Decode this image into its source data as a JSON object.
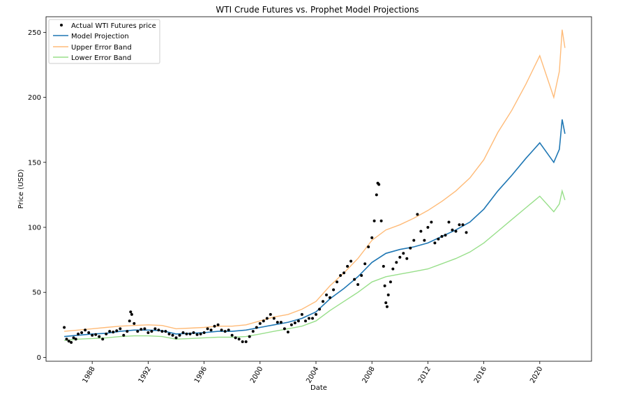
{
  "chart_data": {
    "type": "line",
    "title": "WTI Crude Futures vs. Prophet Model Projections",
    "xlabel": "Date",
    "ylabel": "Price (USD)",
    "xlim": [
      1984.7,
      2023.7
    ],
    "ylim": [
      -3,
      262
    ],
    "xticks": [
      1988,
      1992,
      1996,
      2000,
      2004,
      2008,
      2012,
      2016,
      2020
    ],
    "yticks": [
      0,
      50,
      100,
      150,
      200,
      250
    ],
    "grid": false,
    "legend_position": "upper left",
    "series": [
      {
        "name": "Actual WTI Futures price",
        "style": "markers",
        "color": "#000000",
        "points": [
          [
            1986.0,
            23
          ],
          [
            1986.17,
            14
          ],
          [
            1986.33,
            12.5
          ],
          [
            1986.5,
            11.5
          ],
          [
            1986.67,
            15
          ],
          [
            1986.83,
            14
          ],
          [
            1987.0,
            18
          ],
          [
            1987.25,
            19
          ],
          [
            1987.5,
            21
          ],
          [
            1987.75,
            19
          ],
          [
            1988.0,
            17
          ],
          [
            1988.25,
            17.5
          ],
          [
            1988.5,
            16
          ],
          [
            1988.75,
            14
          ],
          [
            1989.0,
            18
          ],
          [
            1989.25,
            20
          ],
          [
            1989.5,
            19.5
          ],
          [
            1989.75,
            20.5
          ],
          [
            1990.0,
            22
          ],
          [
            1990.25,
            17
          ],
          [
            1990.5,
            20
          ],
          [
            1990.67,
            28
          ],
          [
            1990.75,
            35
          ],
          [
            1990.83,
            33
          ],
          [
            1991.0,
            26
          ],
          [
            1991.25,
            20
          ],
          [
            1991.5,
            21.5
          ],
          [
            1991.75,
            22
          ],
          [
            1992.0,
            19
          ],
          [
            1992.25,
            20
          ],
          [
            1992.5,
            22
          ],
          [
            1992.75,
            21
          ],
          [
            1993.0,
            20
          ],
          [
            1993.25,
            20
          ],
          [
            1993.5,
            18
          ],
          [
            1993.75,
            17
          ],
          [
            1994.0,
            15
          ],
          [
            1994.25,
            17
          ],
          [
            1994.5,
            19
          ],
          [
            1994.75,
            18
          ],
          [
            1995.0,
            18
          ],
          [
            1995.25,
            19
          ],
          [
            1995.5,
            17.5
          ],
          [
            1995.75,
            18
          ],
          [
            1996.0,
            19
          ],
          [
            1996.25,
            22
          ],
          [
            1996.5,
            21
          ],
          [
            1996.75,
            24
          ],
          [
            1997.0,
            25
          ],
          [
            1997.25,
            21
          ],
          [
            1997.5,
            20
          ],
          [
            1997.75,
            21
          ],
          [
            1998.0,
            17
          ],
          [
            1998.25,
            15
          ],
          [
            1998.5,
            14
          ],
          [
            1998.75,
            12
          ],
          [
            1999.0,
            12
          ],
          [
            1999.25,
            16
          ],
          [
            1999.5,
            20
          ],
          [
            1999.75,
            23
          ],
          [
            2000.0,
            26
          ],
          [
            2000.25,
            28
          ],
          [
            2000.5,
            30
          ],
          [
            2000.75,
            33
          ],
          [
            2001.0,
            30
          ],
          [
            2001.25,
            27
          ],
          [
            2001.5,
            27
          ],
          [
            2001.75,
            22
          ],
          [
            2002.0,
            19.5
          ],
          [
            2002.25,
            25
          ],
          [
            2002.5,
            26.5
          ],
          [
            2002.75,
            28
          ],
          [
            2003.0,
            33
          ],
          [
            2003.25,
            28
          ],
          [
            2003.5,
            30
          ],
          [
            2003.75,
            30
          ],
          [
            2004.0,
            33
          ],
          [
            2004.25,
            37
          ],
          [
            2004.5,
            43
          ],
          [
            2004.75,
            48
          ],
          [
            2005.0,
            46
          ],
          [
            2005.25,
            52
          ],
          [
            2005.5,
            58
          ],
          [
            2005.75,
            63
          ],
          [
            2006.0,
            65
          ],
          [
            2006.25,
            70
          ],
          [
            2006.5,
            74
          ],
          [
            2006.75,
            60
          ],
          [
            2007.0,
            56
          ],
          [
            2007.25,
            63
          ],
          [
            2007.5,
            72
          ],
          [
            2007.75,
            85
          ],
          [
            2008.0,
            92
          ],
          [
            2008.17,
            105
          ],
          [
            2008.33,
            125
          ],
          [
            2008.42,
            134
          ],
          [
            2008.5,
            133
          ],
          [
            2008.67,
            105
          ],
          [
            2008.83,
            70
          ],
          [
            2008.92,
            55
          ],
          [
            2009.0,
            42
          ],
          [
            2009.08,
            39
          ],
          [
            2009.17,
            48
          ],
          [
            2009.33,
            58
          ],
          [
            2009.5,
            68
          ],
          [
            2009.75,
            73
          ],
          [
            2010.0,
            77
          ],
          [
            2010.25,
            80
          ],
          [
            2010.5,
            76
          ],
          [
            2010.75,
            84
          ],
          [
            2011.0,
            90
          ],
          [
            2011.25,
            110
          ],
          [
            2011.5,
            97
          ],
          [
            2011.75,
            90
          ],
          [
            2012.0,
            100
          ],
          [
            2012.25,
            104
          ],
          [
            2012.5,
            88
          ],
          [
            2012.75,
            91
          ],
          [
            2013.0,
            93
          ],
          [
            2013.25,
            94
          ],
          [
            2013.5,
            104
          ],
          [
            2013.75,
            98
          ],
          [
            2014.0,
            97
          ],
          [
            2014.25,
            102
          ],
          [
            2014.5,
            102
          ],
          [
            2014.75,
            96
          ]
        ]
      },
      {
        "name": "Model Projection",
        "style": "line",
        "color": "#1f77b4",
        "points": [
          [
            1986.0,
            16
          ],
          [
            1987,
            17
          ],
          [
            1988,
            18
          ],
          [
            1989,
            18.5
          ],
          [
            1990,
            20
          ],
          [
            1991,
            21
          ],
          [
            1992,
            21
          ],
          [
            1993,
            20.5
          ],
          [
            1994,
            18
          ],
          [
            1995,
            18.5
          ],
          [
            1996,
            19
          ],
          [
            1997,
            20
          ],
          [
            1998,
            20
          ],
          [
            1999,
            21
          ],
          [
            2000,
            23
          ],
          [
            2001,
            25
          ],
          [
            2002,
            27
          ],
          [
            2003,
            30
          ],
          [
            2004,
            35
          ],
          [
            2005,
            45
          ],
          [
            2006,
            53
          ],
          [
            2007,
            62
          ],
          [
            2008,
            73
          ],
          [
            2009,
            80
          ],
          [
            2010,
            83
          ],
          [
            2011,
            85
          ],
          [
            2012,
            88
          ],
          [
            2013,
            93
          ],
          [
            2014,
            98
          ],
          [
            2015,
            104
          ],
          [
            2016,
            114
          ],
          [
            2017,
            128
          ],
          [
            2018,
            140
          ],
          [
            2019,
            153
          ],
          [
            2020,
            165
          ],
          [
            2021,
            150
          ],
          [
            2021.4,
            160
          ],
          [
            2021.6,
            183
          ],
          [
            2021.8,
            172
          ]
        ]
      },
      {
        "name": "Upper Error Band",
        "style": "line",
        "color": "#ffbb78",
        "points": [
          [
            1986.0,
            20
          ],
          [
            1987,
            21
          ],
          [
            1988,
            22
          ],
          [
            1989,
            23
          ],
          [
            1990,
            24
          ],
          [
            1991,
            24.5
          ],
          [
            1992,
            25
          ],
          [
            1993,
            24.5
          ],
          [
            1994,
            22
          ],
          [
            1995,
            22.5
          ],
          [
            1996,
            23
          ],
          [
            1997,
            24
          ],
          [
            1998,
            24
          ],
          [
            1999,
            25
          ],
          [
            2000,
            28
          ],
          [
            2001,
            31
          ],
          [
            2002,
            33
          ],
          [
            2003,
            37
          ],
          [
            2004,
            43
          ],
          [
            2005,
            55
          ],
          [
            2006,
            65
          ],
          [
            2007,
            76
          ],
          [
            2008,
            90
          ],
          [
            2009,
            98
          ],
          [
            2010,
            102
          ],
          [
            2011,
            107
          ],
          [
            2012,
            113
          ],
          [
            2013,
            120
          ],
          [
            2014,
            128
          ],
          [
            2015,
            138
          ],
          [
            2016,
            152
          ],
          [
            2017,
            173
          ],
          [
            2018,
            190
          ],
          [
            2019,
            210
          ],
          [
            2020,
            232
          ],
          [
            2021,
            200
          ],
          [
            2021.4,
            220
          ],
          [
            2021.6,
            252
          ],
          [
            2021.8,
            238
          ]
        ]
      },
      {
        "name": "Lower Error Band",
        "style": "line",
        "color": "#98df8a",
        "points": [
          [
            1986.0,
            13
          ],
          [
            1987,
            14
          ],
          [
            1988,
            14.5
          ],
          [
            1989,
            15
          ],
          [
            1990,
            16
          ],
          [
            1991,
            16.5
          ],
          [
            1992,
            16.5
          ],
          [
            1993,
            16
          ],
          [
            1994,
            14
          ],
          [
            1995,
            14.5
          ],
          [
            1996,
            15
          ],
          [
            1997,
            15.5
          ],
          [
            1998,
            15.5
          ],
          [
            1999,
            16
          ],
          [
            2000,
            18
          ],
          [
            2001,
            20
          ],
          [
            2002,
            22
          ],
          [
            2003,
            24
          ],
          [
            2004,
            28
          ],
          [
            2005,
            36
          ],
          [
            2006,
            43
          ],
          [
            2007,
            50
          ],
          [
            2008,
            58
          ],
          [
            2009,
            62
          ],
          [
            2010,
            64
          ],
          [
            2011,
            66
          ],
          [
            2012,
            68
          ],
          [
            2013,
            72
          ],
          [
            2014,
            76
          ],
          [
            2015,
            81
          ],
          [
            2016,
            88
          ],
          [
            2017,
            97
          ],
          [
            2018,
            106
          ],
          [
            2019,
            115
          ],
          [
            2020,
            124
          ],
          [
            2021,
            112
          ],
          [
            2021.4,
            118
          ],
          [
            2021.6,
            128
          ],
          [
            2021.8,
            121
          ]
        ]
      }
    ]
  }
}
